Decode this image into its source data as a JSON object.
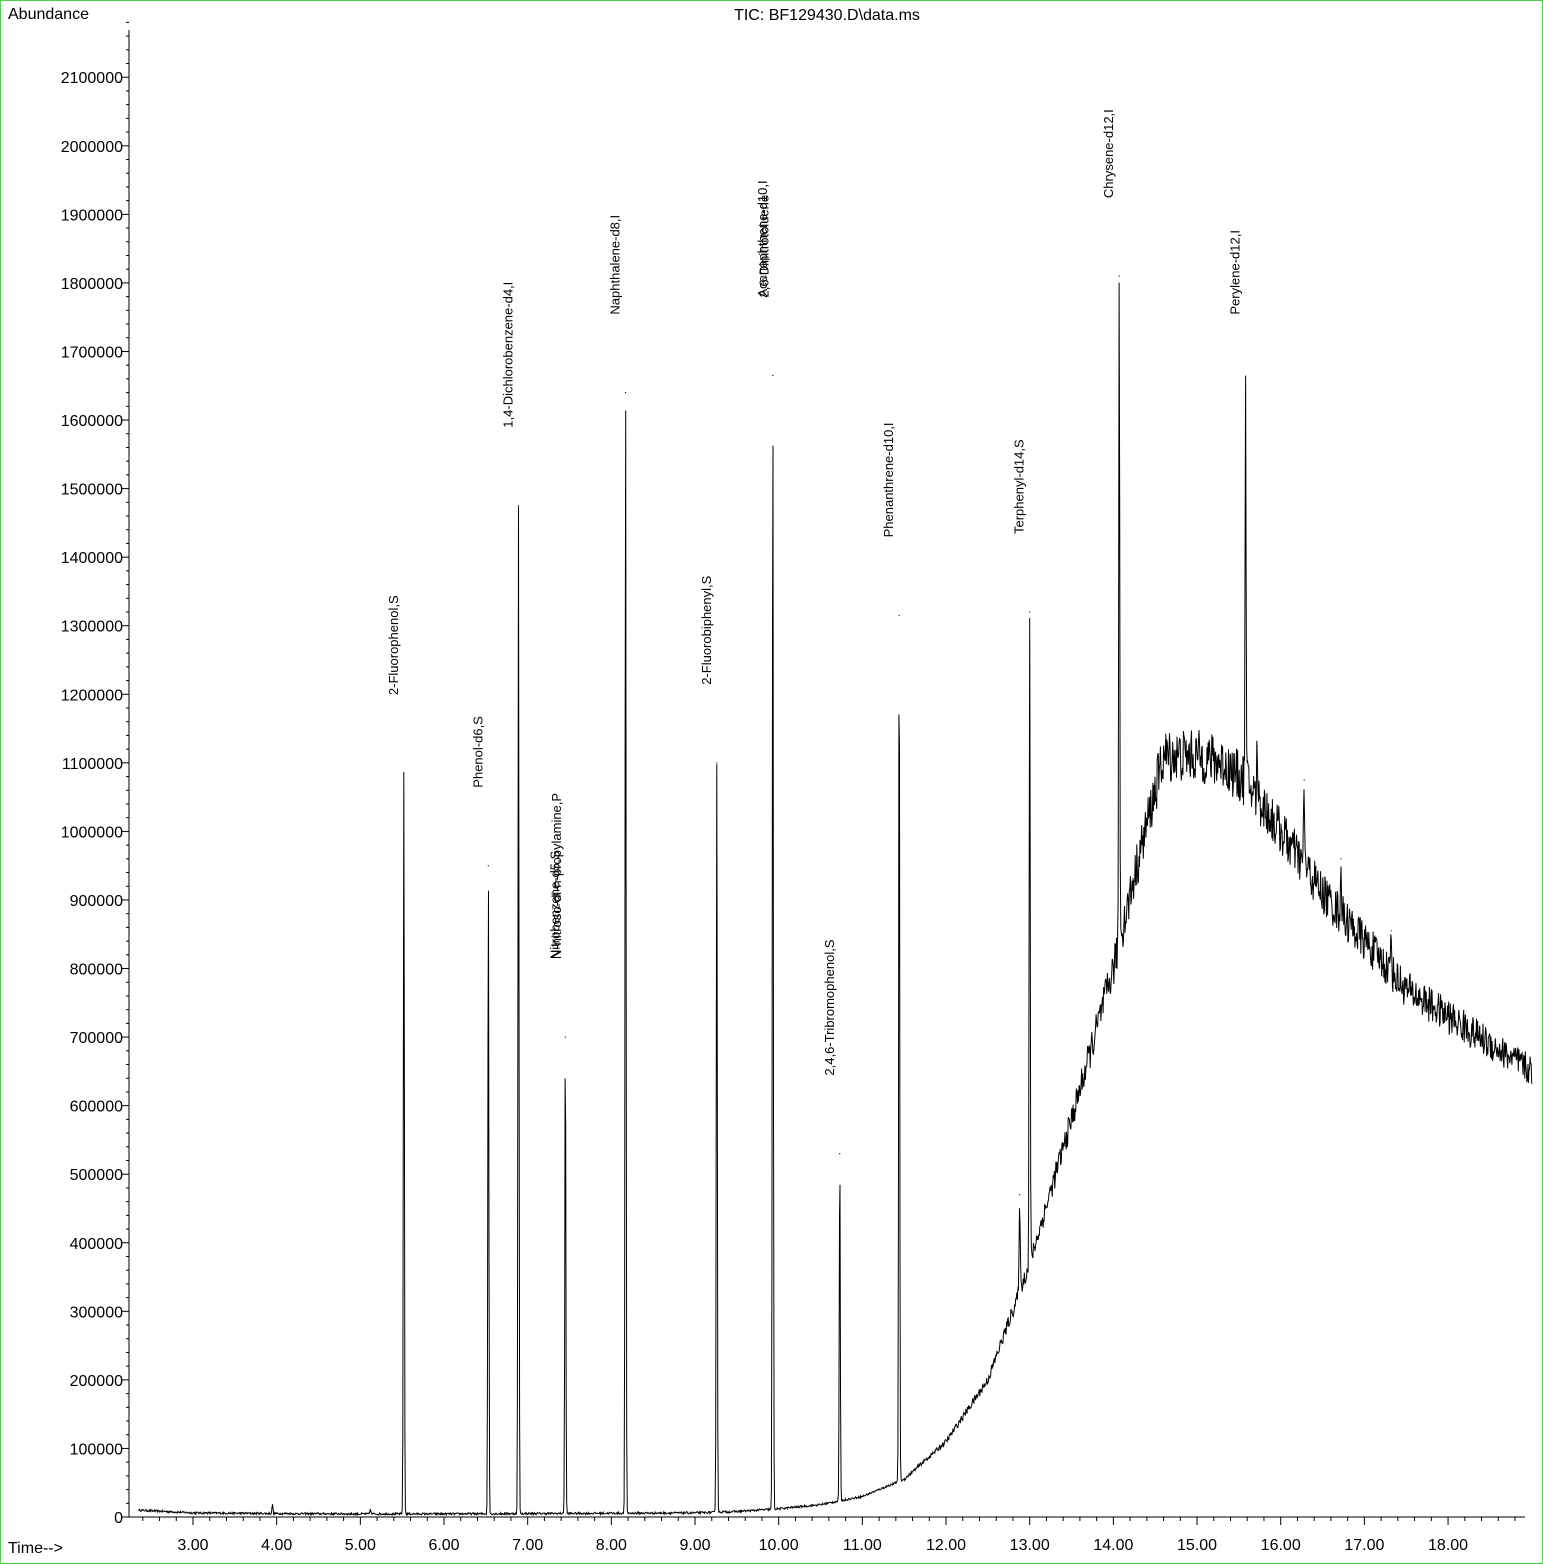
{
  "chart_data": {
    "type": "line",
    "title": "TIC: BF129430.D\\data.ms",
    "ylabel": "Abundance",
    "xlabel": "Time-->",
    "xlim": [
      2.35,
      19.0
    ],
    "ylim": [
      0,
      2200000
    ],
    "x_ticks": [
      3,
      4,
      5,
      6,
      7,
      8,
      9,
      10,
      11,
      12,
      13,
      14,
      15,
      16,
      17,
      18
    ],
    "x_tick_labels": [
      "3.00",
      "4.00",
      "5.00",
      "6.00",
      "7.00",
      "8.00",
      "9.00",
      "10.00",
      "11.00",
      "12.00",
      "13.00",
      "14.00",
      "15.00",
      "16.00",
      "17.00",
      "18.00"
    ],
    "y_ticks": [
      0,
      100000,
      200000,
      300000,
      400000,
      500000,
      600000,
      700000,
      800000,
      900000,
      1000000,
      1100000,
      1200000,
      1300000,
      1400000,
      1500000,
      1600000,
      1700000,
      1800000,
      1900000,
      2000000,
      2100000
    ],
    "y_tick_labels": [
      "0",
      "100000",
      "200000",
      "300000",
      "400000",
      "500000",
      "600000",
      "700000",
      "800000",
      "900000",
      "1000000",
      "1100000",
      "1200000",
      "1300000",
      "1400000",
      "1500000",
      "1600000",
      "1700000",
      "1800000",
      "1900000",
      "2000000",
      "2100000"
    ],
    "baseline": [
      [
        2.35,
        10000
      ],
      [
        3.0,
        6000
      ],
      [
        4.0,
        5000
      ],
      [
        5.0,
        4500
      ],
      [
        6.0,
        4500
      ],
      [
        7.0,
        5000
      ],
      [
        8.0,
        5500
      ],
      [
        9.0,
        6000
      ],
      [
        9.5,
        8000
      ],
      [
        10.0,
        12000
      ],
      [
        10.5,
        18000
      ],
      [
        11.0,
        30000
      ],
      [
        11.5,
        55000
      ],
      [
        12.0,
        110000
      ],
      [
        12.5,
        200000
      ],
      [
        13.0,
        370000
      ],
      [
        13.5,
        580000
      ],
      [
        14.0,
        800000
      ],
      [
        14.3,
        960000
      ],
      [
        14.6,
        1110000
      ],
      [
        15.0,
        1110000
      ],
      [
        15.3,
        1100000
      ],
      [
        15.6,
        1070000
      ],
      [
        16.0,
        1000000
      ],
      [
        16.5,
        910000
      ],
      [
        17.0,
        840000
      ],
      [
        17.5,
        770000
      ],
      [
        18.0,
        730000
      ],
      [
        18.5,
        690000
      ],
      [
        19.0,
        650000
      ]
    ],
    "peaks": [
      {
        "t": 3.95,
        "h": 18000
      },
      {
        "t": 5.12,
        "h": 11000
      },
      {
        "t": 5.52,
        "h": 1085000,
        "label": "2-Fluorophenol,S"
      },
      {
        "t": 6.53,
        "h": 950000,
        "label": "Phenol-d6,S"
      },
      {
        "t": 6.89,
        "h": 1475000,
        "label": "1,4-Dichlorobenzene-d4,I"
      },
      {
        "t": 7.45,
        "h": 700000,
        "label": "Nitrobenzene-d5,S"
      },
      {
        "t": 7.47,
        "h": 0,
        "label": "N-nitroso-di-n-propylamine,P"
      },
      {
        "t": 8.17,
        "h": 1640000,
        "label": "Naphthalene-d8,I"
      },
      {
        "t": 9.26,
        "h": 1100000,
        "label": "2-Fluorobiphenyl,S"
      },
      {
        "t": 9.93,
        "h": 1665000,
        "label": "Acenaphthene-d10,I"
      },
      {
        "t": 9.95,
        "h": 0,
        "label": "2,6-Dinitrotoluene"
      },
      {
        "t": 10.73,
        "h": 530000,
        "label": "2,4,6-Tribromophenol,S"
      },
      {
        "t": 11.44,
        "h": 1315000,
        "label": "Phenanthrene-d10,I"
      },
      {
        "t": 12.88,
        "h": 470000
      },
      {
        "t": 13.0,
        "h": 1320000,
        "label": "Terphenyl-d14,S"
      },
      {
        "t": 14.07,
        "h": 1810000,
        "label": "Chrysene-d12,I"
      },
      {
        "t": 15.58,
        "h": 1640000,
        "label": "Perylene-d12,I"
      },
      {
        "t": 15.72,
        "h": 1125000
      },
      {
        "t": 16.28,
        "h": 1075000
      },
      {
        "t": 16.72,
        "h": 960000
      },
      {
        "t": 17.32,
        "h": 855000
      }
    ]
  }
}
